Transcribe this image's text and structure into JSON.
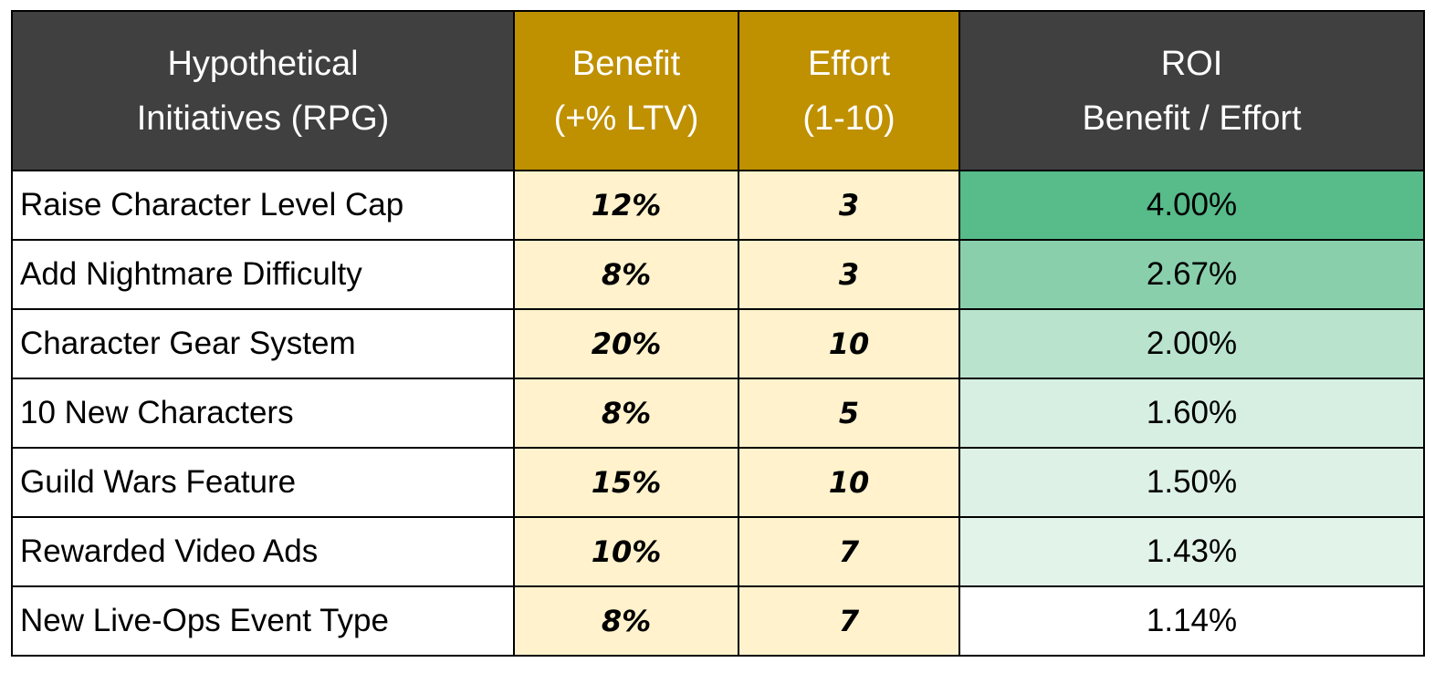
{
  "table": {
    "header": [
      [
        "Hypothetical",
        "Initiatives (RPG)"
      ],
      [
        "Benefit",
        "(+% LTV)"
      ],
      [
        "Effort",
        "(1-10)"
      ],
      [
        "ROI",
        "Benefit / Effort"
      ]
    ],
    "header_colors": [
      "#404040",
      "#bf9000",
      "#bf9000",
      "#404040"
    ],
    "column_fill": [
      "#ffffff",
      "#fff2cc",
      "#fff2cc",
      null
    ],
    "rows": [
      {
        "initiative": "Raise Character Level Cap",
        "benefit": "12%",
        "effort": "3",
        "roi": "4.00%",
        "roi_color": "#57bb8a"
      },
      {
        "initiative": "Add Nightmare Difficulty",
        "benefit": "8%",
        "effort": "3",
        "roi": "2.67%",
        "roi_color": "#89cfac"
      },
      {
        "initiative": "Character Gear System",
        "benefit": "20%",
        "effort": "10",
        "roi": "2.00%",
        "roi_color": "#b9e3cd"
      },
      {
        "initiative": "10 New Characters",
        "benefit": "8%",
        "effort": "5",
        "roi": "1.60%",
        "roi_color": "#d6efe2"
      },
      {
        "initiative": "Guild Wars Feature",
        "benefit": "15%",
        "effort": "10",
        "roi": "1.50%",
        "roi_color": "#ddf1e6"
      },
      {
        "initiative": "Rewarded Video Ads",
        "benefit": "10%",
        "effort": "7",
        "roi": "1.43%",
        "roi_color": "#e2f3e9"
      },
      {
        "initiative": "New Live-Ops Event Type",
        "benefit": "8%",
        "effort": "7",
        "roi": "1.14%",
        "roi_color": "#ffffff"
      }
    ]
  }
}
